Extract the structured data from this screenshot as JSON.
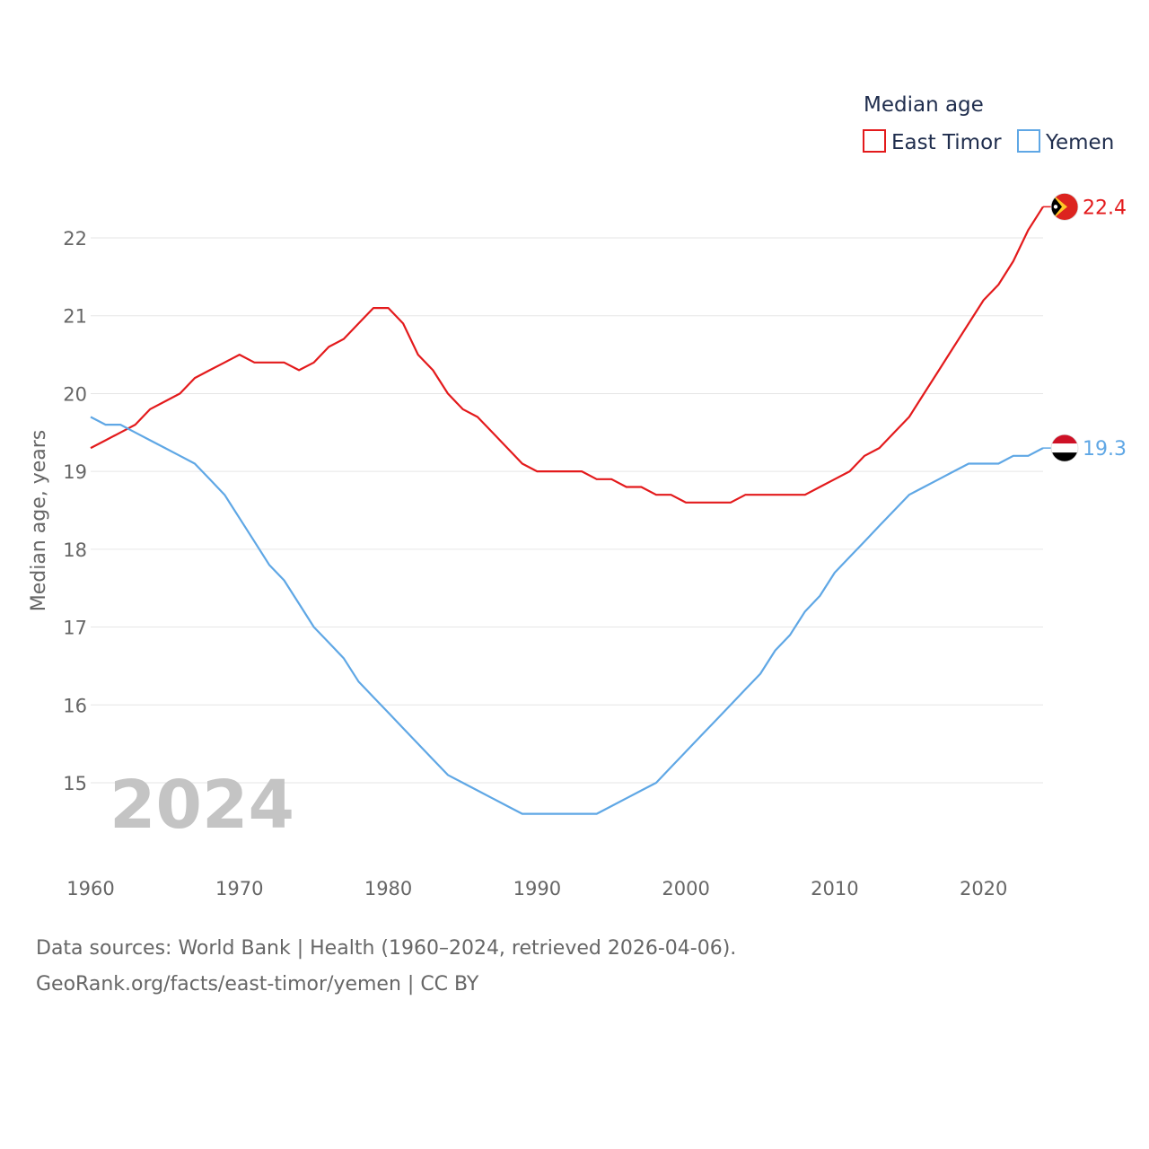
{
  "chart_data": {
    "type": "line",
    "title": "",
    "ylabel": "Median age, years",
    "xlabel": "",
    "legend_title": "Median age",
    "legend_position": "top-right",
    "current_year": "2024",
    "x": [
      1960,
      1961,
      1962,
      1963,
      1964,
      1965,
      1966,
      1967,
      1968,
      1969,
      1970,
      1971,
      1972,
      1973,
      1974,
      1975,
      1976,
      1977,
      1978,
      1979,
      1980,
      1981,
      1982,
      1983,
      1984,
      1985,
      1986,
      1987,
      1988,
      1989,
      1990,
      1991,
      1992,
      1993,
      1994,
      1995,
      1996,
      1997,
      1998,
      1999,
      2000,
      2001,
      2002,
      2003,
      2004,
      2005,
      2006,
      2007,
      2008,
      2009,
      2010,
      2011,
      2012,
      2013,
      2014,
      2015,
      2016,
      2017,
      2018,
      2019,
      2020,
      2021,
      2022,
      2023,
      2024
    ],
    "xlim": [
      1960,
      2024
    ],
    "ylim": [
      14.1,
      22.75
    ],
    "x_ticks": [
      "1960",
      "1970",
      "1980",
      "1990",
      "2000",
      "2010",
      "2020"
    ],
    "y_ticks": [
      "15",
      "16",
      "17",
      "18",
      "19",
      "20",
      "21",
      "22"
    ],
    "grid": true,
    "series": [
      {
        "name": "East Timor",
        "color": "#e31a1c",
        "end_label": "22.4",
        "flag_icon": "east-timor-flag-icon",
        "values": [
          19.3,
          19.4,
          19.5,
          19.6,
          19.8,
          19.9,
          20.0,
          20.2,
          20.3,
          20.4,
          20.5,
          20.4,
          20.4,
          20.4,
          20.3,
          20.4,
          20.6,
          20.7,
          20.9,
          21.1,
          21.1,
          20.9,
          20.5,
          20.3,
          20.0,
          19.8,
          19.7,
          19.5,
          19.3,
          19.1,
          19.0,
          19.0,
          19.0,
          19.0,
          18.9,
          18.9,
          18.8,
          18.8,
          18.7,
          18.7,
          18.6,
          18.6,
          18.6,
          18.6,
          18.7,
          18.7,
          18.7,
          18.7,
          18.7,
          18.8,
          18.9,
          19.0,
          19.2,
          19.3,
          19.5,
          19.7,
          20.0,
          20.3,
          20.6,
          20.9,
          21.2,
          21.4,
          21.7,
          22.1,
          22.4
        ]
      },
      {
        "name": "Yemen",
        "color": "#5fa7e5",
        "end_label": "19.3",
        "flag_icon": "yemen-flag-icon",
        "values": [
          19.7,
          19.6,
          19.6,
          19.5,
          19.4,
          19.3,
          19.2,
          19.1,
          18.9,
          18.7,
          18.4,
          18.1,
          17.8,
          17.6,
          17.3,
          17.0,
          16.8,
          16.6,
          16.3,
          16.1,
          15.9,
          15.7,
          15.5,
          15.3,
          15.1,
          15.0,
          14.9,
          14.8,
          14.7,
          14.6,
          14.6,
          14.6,
          14.6,
          14.6,
          14.6,
          14.7,
          14.8,
          14.9,
          15.0,
          15.2,
          15.4,
          15.6,
          15.8,
          16.0,
          16.2,
          16.4,
          16.7,
          16.9,
          17.2,
          17.4,
          17.7,
          17.9,
          18.1,
          18.3,
          18.5,
          18.7,
          18.8,
          18.9,
          19.0,
          19.1,
          19.1,
          19.1,
          19.2,
          19.2,
          19.3
        ]
      }
    ]
  },
  "footer": {
    "sources": "Data sources: World Bank | Health (1960–2024, retrieved 2026-04-06).",
    "credit": "GeoRank.org/facts/east-timor/yemen | CC BY"
  }
}
